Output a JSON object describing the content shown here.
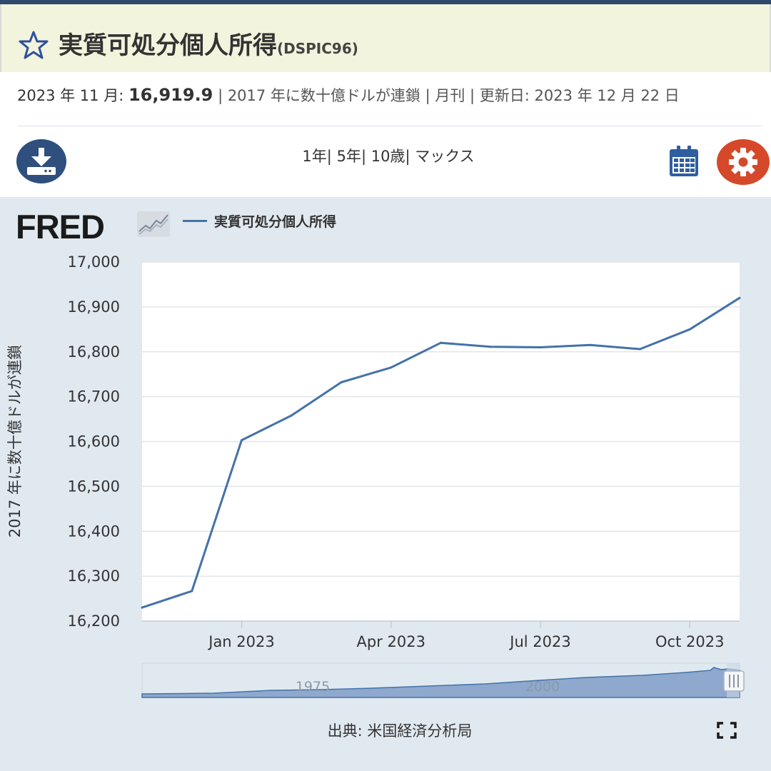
{
  "header": {
    "title": "実質可処分個人所得",
    "series_id": "(DSPIC96)",
    "star_icon": "star-outline-icon"
  },
  "meta": {
    "date_label": "2023 年 11 月: ",
    "value": "16,919.9",
    "units": " | 2017 年に数十億ドルが連鎖 | 月刊 | 更新日: 2023 年 12 月 22 日"
  },
  "toolbar": {
    "download_icon": "download-icon",
    "ranges": [
      "1年",
      "5年",
      "10歳",
      "マックス"
    ],
    "calendar_icon": "calendar-icon",
    "settings_icon": "gear-icon"
  },
  "chart_header": {
    "logo_text": "FRED",
    "legend_label": "実質可処分個人所得"
  },
  "chart_data": {
    "type": "line",
    "y_axis_title": "2017 年に数十億ドルが連鎖",
    "ylim": [
      16200,
      17000
    ],
    "y_ticks": [
      "16,200",
      "16,300",
      "16,400",
      "16,500",
      "16,600",
      "16,700",
      "16,800",
      "16,900",
      "17,000"
    ],
    "y_tick_values": [
      16200,
      16300,
      16400,
      16500,
      16600,
      16700,
      16800,
      16900,
      17000
    ],
    "x_ticks": [
      "Jan 2023",
      "Apr 2023",
      "Jul 2023",
      "Oct 2023"
    ],
    "x_tick_months": [
      1,
      4,
      7,
      10
    ],
    "x": [
      "2022-11",
      "2022-12",
      "2023-01",
      "2023-02",
      "2023-03",
      "2023-04",
      "2023-05",
      "2023-06",
      "2023-07",
      "2023-08",
      "2023-09",
      "2023-10",
      "2023-11"
    ],
    "series": [
      {
        "name": "実質可処分個人所得",
        "color": "#4472a8",
        "values": [
          16230,
          16267,
          16603,
          16658,
          16732,
          16765,
          16820,
          16811,
          16810,
          16815,
          16806,
          16850,
          16920
        ]
      }
    ],
    "grid": true,
    "legend": "top-left"
  },
  "navigator": {
    "labels": [
      "1975",
      "2000"
    ]
  },
  "footer": {
    "source": "出典: 米国経済分析局",
    "fullscreen_icon": "fullscreen-icon"
  }
}
